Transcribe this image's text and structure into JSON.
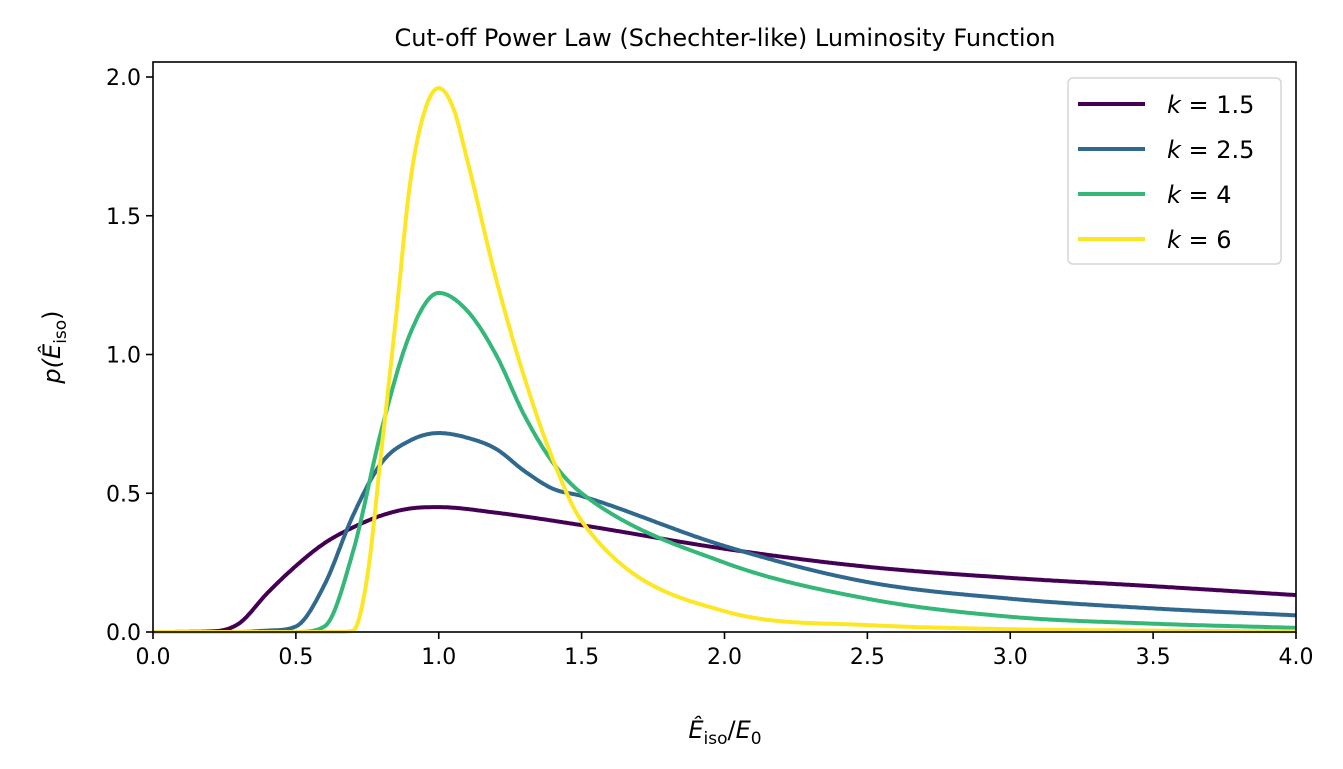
{
  "chart_data": {
    "type": "line",
    "title": "Cut-off Power Law (Schechter-like) Luminosity Function",
    "xlabel": {
      "base": "Ê",
      "sub": "iso",
      "mid": "/",
      "base2": "E",
      "sub2": "0"
    },
    "ylabel": {
      "pre": "p(",
      "base": "Ê",
      "sub": "iso",
      "post": ")"
    },
    "xlim": [
      0,
      4
    ],
    "ylim": [
      0,
      2.05
    ],
    "xticks": [
      "0.0",
      "0.5",
      "1.0",
      "1.5",
      "2.0",
      "2.5",
      "3.0",
      "3.5",
      "4.0"
    ],
    "yticks": [
      "0.0",
      "0.5",
      "1.0",
      "1.5",
      "2.0"
    ],
    "grid": false,
    "legend_position": "top-right",
    "series": [
      {
        "name": "k = 1.5",
        "label_var": "k",
        "label_val": "1.5",
        "color": "#440154",
        "x": [
          0,
          0.2,
          0.3,
          0.4,
          0.5,
          0.6,
          0.7,
          0.8,
          0.9,
          1.0,
          1.2,
          1.5,
          2.0,
          2.5,
          3.0,
          3.5,
          4.0
        ],
        "y": [
          0,
          0.002,
          0.03,
          0.14,
          0.238,
          0.32,
          0.377,
          0.42,
          0.445,
          0.45,
          0.43,
          0.385,
          0.3,
          0.235,
          0.195,
          0.165,
          0.133
        ]
      },
      {
        "name": "k = 2.5",
        "label_var": "k",
        "label_val": "2.5",
        "color": "#31688e",
        "x": [
          0,
          0.3,
          0.4,
          0.5,
          0.6,
          0.7,
          0.8,
          0.9,
          1.0,
          1.1,
          1.2,
          1.3,
          1.4,
          1.5,
          2.0,
          2.5,
          3.0,
          3.5,
          4.0
        ],
        "y": [
          0,
          0,
          0.005,
          0.02,
          0.17,
          0.42,
          0.61,
          0.69,
          0.717,
          0.7,
          0.66,
          0.58,
          0.516,
          0.49,
          0.31,
          0.18,
          0.12,
          0.085,
          0.06
        ]
      },
      {
        "name": "k = 4",
        "label_var": "k",
        "label_val": "4",
        "color": "#35b779",
        "x": [
          0,
          0.5,
          0.6,
          0.7,
          0.8,
          0.9,
          1.0,
          1.1,
          1.2,
          1.3,
          1.4,
          1.5,
          2.0,
          2.5,
          3.0,
          3.5,
          4.0
        ],
        "y": [
          0,
          0,
          0.02,
          0.29,
          0.73,
          1.075,
          1.222,
          1.157,
          1.0,
          0.78,
          0.61,
          0.5,
          0.25,
          0.12,
          0.055,
          0.03,
          0.015
        ]
      },
      {
        "name": "k = 6",
        "label_var": "k",
        "label_val": "6",
        "color": "#fde725",
        "x": [
          0,
          0.65,
          0.7,
          0.75,
          0.8,
          0.85,
          0.9,
          0.95,
          1.0,
          1.05,
          1.1,
          1.2,
          1.3,
          1.4,
          1.5,
          2.0,
          2.5,
          3.0,
          3.5,
          4.0
        ],
        "y": [
          0,
          0,
          0.005,
          0.2,
          0.66,
          1.13,
          1.62,
          1.875,
          1.96,
          1.89,
          1.7,
          1.275,
          0.916,
          0.62,
          0.4,
          0.075,
          0.025,
          0.01,
          0.005,
          0.002
        ]
      }
    ]
  }
}
